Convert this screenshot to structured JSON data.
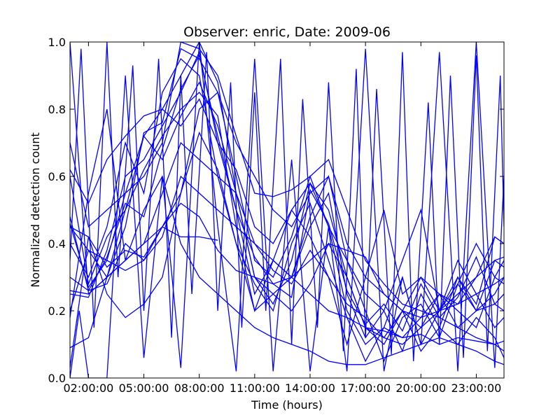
{
  "chart_data": {
    "type": "line",
    "title": "Observer: enric, Date: 2009-06",
    "xlabel": "Time (hours)",
    "ylabel": "Normalized detection count",
    "xlim": [
      1.0,
      24.5
    ],
    "ylim": [
      0.0,
      1.0
    ],
    "x_ticks": [
      2,
      5,
      8,
      11,
      14,
      17,
      20,
      23
    ],
    "x_tick_labels": [
      "02:00:00",
      "05:00:00",
      "08:00:00",
      "11:00:00",
      "14:00:00",
      "17:00:00",
      "20:00:00",
      "23:00:00"
    ],
    "y_ticks": [
      0.0,
      0.2,
      0.4,
      0.6,
      0.8,
      1.0
    ],
    "y_tick_labels": [
      "0.0",
      "0.2",
      "0.4",
      "0.6",
      "0.8",
      "1.0"
    ],
    "grid": false,
    "line_color": "#0000ff",
    "series": [
      {
        "x": [
          1,
          2,
          3,
          4,
          5,
          6,
          7,
          8,
          9,
          10,
          11,
          12,
          13,
          14,
          15,
          16,
          17,
          18,
          19,
          20,
          21,
          22,
          23,
          24,
          24.5
        ],
        "values": [
          1.0,
          0.25,
          0.3,
          0.45,
          0.73,
          0.76,
          0.98,
          0.95,
          0.85,
          0.6,
          0.35,
          0.3,
          0.42,
          0.6,
          0.45,
          0.2,
          0.1,
          0.15,
          0.12,
          0.18,
          0.25,
          0.22,
          0.3,
          0.35,
          0.33
        ]
      },
      {
        "x": [
          1,
          2,
          3,
          4,
          5,
          6,
          7,
          8,
          9,
          10,
          11,
          12,
          13,
          14,
          15,
          16,
          17,
          18,
          19,
          20,
          21,
          22,
          23,
          24,
          24.5
        ],
        "values": [
          0.46,
          0.27,
          0.35,
          0.55,
          0.72,
          0.8,
          0.9,
          1.0,
          0.88,
          0.55,
          0.3,
          0.22,
          0.35,
          0.58,
          0.5,
          0.3,
          0.15,
          0.1,
          0.2,
          0.15,
          0.25,
          0.2,
          0.15,
          0.3,
          0.28
        ]
      },
      {
        "x": [
          1,
          2,
          3,
          4,
          5,
          6,
          7,
          8,
          9,
          10,
          11,
          12,
          13,
          14,
          15,
          16,
          17,
          18,
          19,
          20,
          21,
          22,
          23,
          24,
          24.5
        ],
        "values": [
          0.25,
          0.24,
          0.38,
          0.6,
          0.65,
          0.75,
          0.85,
          0.97,
          0.7,
          0.5,
          0.25,
          0.35,
          0.3,
          0.45,
          0.55,
          0.25,
          0.12,
          0.2,
          0.08,
          0.25,
          0.15,
          0.3,
          0.2,
          0.22,
          0.25
        ]
      },
      {
        "x": [
          1,
          2,
          3,
          4,
          5,
          6,
          7,
          8,
          9,
          10,
          11,
          12,
          13,
          14,
          15,
          16,
          17,
          18,
          19,
          20,
          21,
          22,
          23,
          24,
          24.5
        ],
        "values": [
          0.4,
          0.3,
          0.45,
          0.7,
          0.55,
          0.85,
          0.95,
          0.9,
          0.6,
          0.4,
          0.28,
          0.2,
          0.4,
          0.52,
          0.35,
          0.18,
          0.05,
          0.15,
          0.3,
          0.1,
          0.2,
          0.35,
          0.25,
          0.15,
          0.18
        ]
      },
      {
        "x": [
          1,
          2,
          3,
          4,
          5,
          6,
          7,
          8,
          9,
          10,
          11,
          12,
          13,
          14,
          15,
          16,
          17,
          18,
          19,
          20,
          21,
          22,
          23,
          24,
          24.5
        ],
        "values": [
          0.6,
          0.28,
          0.42,
          0.5,
          0.62,
          0.72,
          0.8,
          0.85,
          0.78,
          0.45,
          0.2,
          0.25,
          0.3,
          0.48,
          0.6,
          0.35,
          0.2,
          0.05,
          0.18,
          0.22,
          0.12,
          0.28,
          0.4,
          0.3,
          0.35
        ]
      },
      {
        "x": [
          1,
          1.5,
          2,
          3,
          4,
          5,
          6,
          7,
          8,
          9,
          10,
          11,
          12,
          13,
          14,
          15,
          16,
          17,
          18,
          19,
          20,
          21,
          22,
          23,
          24,
          24.5
        ],
        "values": [
          0.0,
          0.2,
          0.0,
          0.0,
          0.9,
          0.06,
          0.6,
          0.03,
          1.0,
          0.45,
          0.02,
          0.95,
          0.02,
          0.65,
          0.02,
          0.45,
          0.02,
          0.98,
          0.02,
          0.3,
          0.1,
          0.97,
          0.02,
          1.0,
          0.03,
          0.6
        ]
      },
      {
        "x": [
          1,
          1.6,
          2.3,
          3,
          3.6,
          4.4,
          5,
          5.8,
          6.5,
          7,
          7.6,
          8.4,
          9,
          9.7,
          10.3,
          11,
          11.6,
          12.4,
          13,
          13.6,
          14.4,
          15,
          15.8,
          16.5,
          17,
          17.6,
          18.4,
          19,
          19.6,
          20.4,
          21,
          21.6,
          22.3,
          23,
          23.6,
          24.3,
          24.5
        ],
        "values": [
          0.35,
          0.98,
          0.15,
          1.0,
          0.3,
          0.93,
          0.2,
          0.95,
          0.12,
          0.9,
          0.25,
          0.97,
          0.2,
          0.88,
          0.15,
          0.85,
          0.2,
          0.95,
          0.1,
          0.83,
          0.15,
          0.88,
          0.08,
          0.92,
          0.12,
          0.86,
          0.07,
          0.97,
          0.05,
          0.82,
          0.1,
          0.9,
          0.06,
          0.96,
          0.08,
          0.9,
          0.45
        ]
      },
      {
        "x": [
          1,
          2,
          3,
          4,
          5,
          6,
          7,
          8,
          9,
          10,
          11,
          12,
          13,
          14,
          15,
          16,
          17,
          18,
          19,
          20,
          21,
          22,
          23,
          24,
          24.5
        ],
        "values": [
          0.09,
          0.12,
          0.3,
          0.35,
          0.4,
          0.55,
          0.7,
          0.65,
          0.6,
          0.55,
          0.3,
          0.25,
          0.2,
          0.28,
          0.4,
          0.3,
          0.15,
          0.12,
          0.1,
          0.15,
          0.2,
          0.25,
          0.3,
          0.42,
          0.4
        ]
      },
      {
        "x": [
          1,
          2,
          3,
          4,
          5,
          6,
          7,
          8,
          9,
          10,
          11,
          12,
          13,
          14,
          15,
          16,
          17,
          18,
          19,
          20,
          21,
          22,
          23,
          24,
          24.5
        ],
        "values": [
          0.2,
          0.38,
          0.35,
          0.32,
          0.35,
          0.42,
          0.6,
          0.55,
          0.5,
          0.45,
          0.4,
          0.35,
          0.3,
          0.25,
          0.2,
          0.18,
          0.15,
          0.14,
          0.12,
          0.13,
          0.1,
          0.12,
          0.11,
          0.1,
          0.11
        ]
      },
      {
        "x": [
          1,
          2,
          3,
          4,
          5,
          6,
          7,
          8,
          9,
          10,
          11,
          12,
          13,
          14,
          15,
          16,
          17,
          18,
          19,
          20,
          21,
          22,
          23,
          24,
          24.5
        ],
        "values": [
          0.7,
          0.45,
          0.5,
          0.55,
          0.6,
          0.7,
          1.0,
          0.98,
          0.9,
          0.72,
          0.55,
          0.54,
          0.56,
          0.6,
          0.65,
          0.5,
          0.35,
          0.28,
          0.22,
          0.2,
          0.18,
          0.15,
          0.12,
          0.1,
          0.08
        ]
      },
      {
        "x": [
          1,
          2,
          3,
          4,
          5,
          6,
          7,
          8,
          9,
          10,
          11,
          12,
          13,
          14,
          15,
          16,
          17,
          18,
          19,
          20,
          21,
          22,
          23,
          24,
          24.5
        ],
        "values": [
          0.18,
          0.55,
          0.8,
          0.35,
          0.5,
          0.6,
          0.4,
          0.3,
          0.25,
          0.2,
          0.15,
          0.12,
          0.1,
          0.08,
          0.05,
          0.04,
          0.04,
          0.06,
          0.08,
          0.1,
          0.12,
          0.1,
          0.08,
          0.05,
          0.04
        ]
      },
      {
        "x": [
          1,
          2,
          3,
          4,
          5,
          6,
          7,
          8,
          9,
          10,
          11,
          12,
          13,
          14,
          15,
          16,
          17,
          18,
          19,
          20,
          21,
          22,
          23,
          24,
          24.5
        ],
        "values": [
          0.62,
          0.52,
          0.65,
          0.72,
          0.78,
          0.8,
          0.75,
          0.83,
          0.7,
          0.62,
          0.45,
          0.4,
          0.5,
          0.58,
          0.45,
          0.35,
          0.25,
          0.2,
          0.35,
          0.5,
          0.2,
          0.3,
          0.22,
          0.42,
          0.4
        ]
      },
      {
        "x": [
          1,
          2,
          3,
          4,
          5,
          6,
          7,
          8,
          9,
          10,
          11,
          12,
          13,
          14,
          15,
          16,
          17,
          18,
          19,
          20,
          21,
          22,
          23,
          24,
          24.5
        ],
        "values": [
          0.3,
          0.26,
          0.28,
          0.4,
          0.35,
          0.45,
          0.55,
          0.8,
          0.85,
          0.7,
          0.6,
          0.5,
          0.45,
          0.55,
          0.6,
          0.4,
          0.3,
          0.25,
          0.2,
          0.3,
          0.25,
          0.15,
          0.2,
          0.25,
          0.3
        ]
      },
      {
        "x": [
          1,
          2,
          3,
          4,
          5,
          6,
          7,
          8,
          9,
          10,
          11,
          12,
          13,
          14,
          15,
          16,
          17,
          18,
          19,
          20,
          21,
          22,
          23,
          24,
          24.5
        ],
        "values": [
          0.48,
          0.26,
          0.36,
          0.52,
          0.48,
          0.68,
          0.86,
          0.96,
          0.72,
          0.5,
          0.36,
          0.28,
          0.24,
          0.56,
          0.46,
          0.26,
          0.16,
          0.22,
          0.14,
          0.28,
          0.18,
          0.24,
          0.36,
          0.22,
          0.2
        ]
      },
      {
        "x": [
          1,
          2,
          3,
          4,
          5,
          6,
          7,
          8,
          9,
          10,
          11,
          12,
          13,
          14,
          15,
          16,
          17,
          18,
          19,
          20,
          21,
          22,
          23,
          24,
          24.5
        ],
        "values": [
          0.45,
          0.42,
          0.33,
          0.38,
          0.36,
          0.45,
          0.52,
          0.48,
          0.38,
          0.32,
          0.3,
          0.28,
          0.3,
          0.35,
          0.4,
          0.38,
          0.36,
          0.25,
          0.2,
          0.18,
          0.2,
          0.22,
          0.25,
          0.28,
          0.3
        ]
      },
      {
        "x": [
          1,
          2,
          3,
          4,
          5,
          6,
          7,
          8,
          9,
          10,
          11,
          12,
          13,
          14,
          15,
          16,
          17,
          18,
          19,
          20,
          21,
          22,
          23,
          24,
          24.5
        ],
        "values": [
          0.26,
          0.25,
          0.3,
          0.5,
          0.72,
          0.65,
          0.78,
          0.88,
          0.75,
          0.55,
          0.4,
          0.32,
          0.28,
          0.38,
          0.3,
          0.22,
          0.18,
          0.12,
          0.2,
          0.08,
          0.15,
          0.1,
          0.18,
          0.12,
          0.06
        ]
      },
      {
        "x": [
          1,
          2,
          3,
          4,
          5,
          6,
          7,
          8,
          9
        ],
        "values": [
          0.45,
          0.38,
          0.3,
          0.35,
          0.4,
          0.45,
          0.42,
          0.42,
          0.41
        ]
      },
      {
        "x": [
          1,
          2,
          3,
          4,
          5,
          6,
          7,
          8,
          9,
          10,
          11,
          12,
          13,
          14,
          15,
          16,
          17,
          18,
          19,
          20,
          21,
          22,
          23,
          24,
          24.5
        ],
        "values": [
          0.03,
          0.42,
          0.25,
          0.18,
          0.22,
          0.3,
          0.55,
          0.73,
          0.62,
          0.4,
          0.2,
          0.35,
          0.5,
          0.42,
          0.3,
          0.1,
          0.3,
          0.5,
          0.25,
          0.3,
          0.2,
          0.28,
          0.2,
          0.35,
          0.36
        ]
      }
    ]
  }
}
